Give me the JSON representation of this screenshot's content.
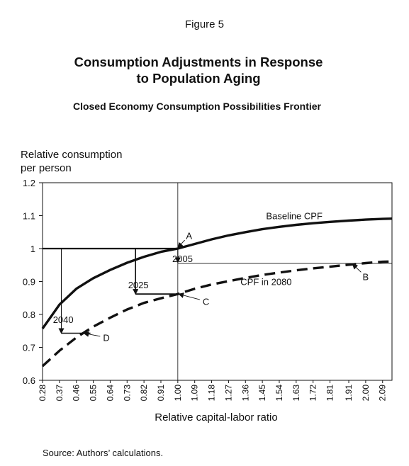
{
  "figure_label": "Figure 5",
  "title_line1": "Consumption Adjustments in Response",
  "title_line2": "to Population Aging",
  "subtitle": "Closed Economy Consumption Possibilities Frontier",
  "source": "Source: Authors’ calculations.",
  "chart_data": {
    "type": "line",
    "ylabel_line1": "Relative consumption",
    "ylabel_line2": "per person",
    "xlabel": "Relative capital-labor ratio",
    "xlim": [
      0.28,
      2.14
    ],
    "ylim": [
      0.6,
      1.2
    ],
    "x_ticks": [
      "0.28",
      "0.37",
      "0.46",
      "0.55",
      "0.64",
      "0.73",
      "0.82",
      "0.91",
      "1.00",
      "1.09",
      "1.18",
      "1.27",
      "1.36",
      "1.45",
      "1.54",
      "1.63",
      "1.72",
      "1.81",
      "1.91",
      "2.00",
      "2.09"
    ],
    "y_ticks": [
      "0.6",
      "0.7",
      "0.8",
      "0.9",
      "1",
      "1.1",
      "1.2"
    ],
    "grid": false,
    "series": [
      {
        "name": "Baseline CPF",
        "style": "solid",
        "points": [
          [
            0.28,
            0.757
          ],
          [
            0.37,
            0.83
          ],
          [
            0.46,
            0.878
          ],
          [
            0.55,
            0.91
          ],
          [
            0.64,
            0.935
          ],
          [
            0.73,
            0.957
          ],
          [
            0.82,
            0.975
          ],
          [
            0.91,
            0.99
          ],
          [
            1.0,
            1.0
          ],
          [
            1.09,
            1.014
          ],
          [
            1.18,
            1.028
          ],
          [
            1.27,
            1.04
          ],
          [
            1.36,
            1.05
          ],
          [
            1.45,
            1.059
          ],
          [
            1.54,
            1.066
          ],
          [
            1.63,
            1.072
          ],
          [
            1.72,
            1.077
          ],
          [
            1.81,
            1.081
          ],
          [
            1.91,
            1.085
          ],
          [
            2.0,
            1.088
          ],
          [
            2.09,
            1.09
          ],
          [
            2.14,
            1.091
          ]
        ]
      },
      {
        "name": "CPF in 2080",
        "style": "dashed",
        "points": [
          [
            0.28,
            0.643
          ],
          [
            0.37,
            0.69
          ],
          [
            0.46,
            0.73
          ],
          [
            0.55,
            0.763
          ],
          [
            0.64,
            0.79
          ],
          [
            0.73,
            0.815
          ],
          [
            0.82,
            0.835
          ],
          [
            0.91,
            0.849
          ],
          [
            1.0,
            0.862
          ],
          [
            1.09,
            0.878
          ],
          [
            1.18,
            0.891
          ],
          [
            1.27,
            0.901
          ],
          [
            1.36,
            0.911
          ],
          [
            1.45,
            0.92
          ],
          [
            1.54,
            0.927
          ],
          [
            1.63,
            0.934
          ],
          [
            1.72,
            0.94
          ],
          [
            1.81,
            0.945
          ],
          [
            1.91,
            0.951
          ],
          [
            2.0,
            0.956
          ],
          [
            2.09,
            0.96
          ],
          [
            2.14,
            0.961
          ]
        ]
      }
    ],
    "adjustment_paths": {
      "horizontal_at_1": {
        "x_from": 0.28,
        "x_to": 1.0,
        "y": 1.0
      },
      "path_2025": {
        "x": 0.775,
        "y_top": 1.0,
        "y_bottom": 0.862,
        "x_end": 0.985
      },
      "path_2040": {
        "x": 0.38,
        "y_top": 1.0,
        "y_bottom": 0.743,
        "x_end": 0.535
      },
      "reference_vertical": {
        "x": 1.0
      },
      "reference_horizontal": {
        "y": 0.955,
        "x_from": 1.0,
        "x_to": 2.14
      }
    },
    "annotations": [
      {
        "text": "A",
        "x": 1.06,
        "y": 1.04,
        "arrow_to": [
          1.0,
          1.003
        ]
      },
      {
        "text": "B",
        "x": 2.0,
        "y": 0.915,
        "arrow_to": [
          1.93,
          0.953
        ]
      },
      {
        "text": "C",
        "x": 1.15,
        "y": 0.84,
        "arrow_to": [
          1.005,
          0.862
        ]
      },
      {
        "text": "D",
        "x": 0.62,
        "y": 0.73,
        "arrow_to": [
          0.5,
          0.743
        ]
      },
      {
        "text": "2005",
        "x": 1.025,
        "y": 0.97
      },
      {
        "text": "2025",
        "x": 0.79,
        "y": 0.89
      },
      {
        "text": "2040",
        "x": 0.39,
        "y": 0.785
      },
      {
        "text": "Baseline CPF",
        "x": 1.62,
        "y": 1.1
      },
      {
        "text": "CPF in 2080",
        "x": 1.47,
        "y": 0.9
      }
    ]
  }
}
